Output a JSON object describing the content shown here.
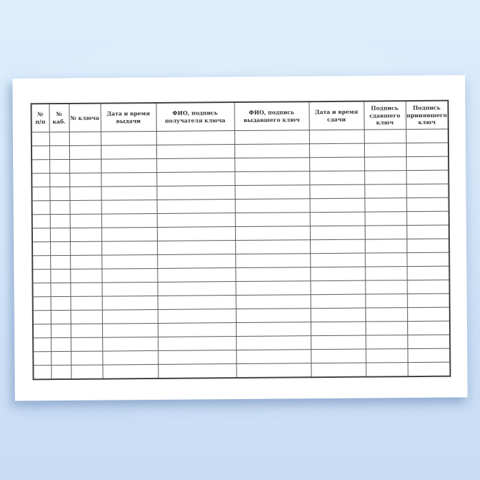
{
  "table": {
    "headers": [
      "№\nп/п",
      "№\nкаб.",
      "№ ключа",
      "Дата и время\nвыдачи",
      "ФИО, подпись\nполучателя ключа",
      "ФИО, подпись\nвыдавшего ключ",
      "Дата и время\nсдачи",
      "Подпись\nсдавшего\nключ",
      "Подпись\nпринявшего\nключ"
    ],
    "column_count": 9,
    "body_row_count": 18
  },
  "colors": {
    "background_top": "#ddeefc",
    "background_bottom": "#c9dcf4",
    "paper": "#ffffff",
    "grid_line": "#565656",
    "grid_outer": "#3e3e3e",
    "text": "#303030"
  }
}
